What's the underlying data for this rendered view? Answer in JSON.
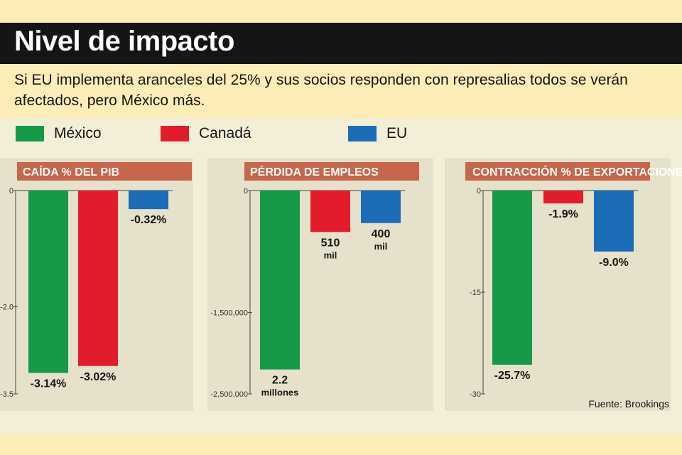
{
  "header": {
    "title": "Nivel de impacto",
    "subtitle": "Si EU implementa aranceles del 25% y sus socios responden con represalias todos se verán afectados, pero México más."
  },
  "legend": [
    {
      "label": "México",
      "color": "#169a48"
    },
    {
      "label": "Canadá",
      "color": "#e31c2b"
    },
    {
      "label": "EU",
      "color": "#1c6cb7"
    }
  ],
  "source": "Fuente: Brookings",
  "chart_data": [
    {
      "type": "bar",
      "title": "CAÍDA % DEL PIB",
      "categories": [
        "México",
        "Canadá",
        "EU"
      ],
      "values": [
        -3.14,
        -3.02,
        -0.32
      ],
      "labels": [
        [
          "-3.14%"
        ],
        [
          "-3.02%"
        ],
        [
          "-0.32%"
        ]
      ],
      "colors": [
        "#169a48",
        "#e31c2b",
        "#1c6cb7"
      ],
      "ylim": [
        -3.5,
        0
      ],
      "yticks": [
        0,
        -2.0,
        -3.5
      ],
      "ytick_labels": [
        "0",
        "-2.0",
        "-3.5"
      ],
      "grid": false
    },
    {
      "type": "bar",
      "title": "PÉRDIDA DE EMPLEOS",
      "categories": [
        "México",
        "Canadá",
        "EU"
      ],
      "values": [
        -2200000,
        -510000,
        -400000
      ],
      "labels": [
        [
          "2.2",
          "millones"
        ],
        [
          "510",
          "mil"
        ],
        [
          "400",
          "mil"
        ]
      ],
      "colors": [
        "#169a48",
        "#e31c2b",
        "#1c6cb7"
      ],
      "ylim": [
        -2500000,
        0
      ],
      "yticks": [
        0,
        -1500000,
        -2500000
      ],
      "ytick_labels": [
        "0",
        "-1,500,000",
        "-2,500,000"
      ],
      "grid": false
    },
    {
      "type": "bar",
      "title": "CONTRACCIÓN % DE EXPORTACIONES",
      "categories": [
        "México",
        "Canadá",
        "EU"
      ],
      "values": [
        -25.7,
        -1.9,
        -9.0
      ],
      "labels": [
        [
          "-25.7%"
        ],
        [
          "-1.9%"
        ],
        [
          "-9.0%"
        ]
      ],
      "colors": [
        "#169a48",
        "#e31c2b",
        "#1c6cb7"
      ],
      "ylim": [
        -30,
        0
      ],
      "yticks": [
        0,
        -15,
        -30
      ],
      "ytick_labels": [
        "0",
        "-15",
        "-30"
      ],
      "grid": false
    }
  ]
}
